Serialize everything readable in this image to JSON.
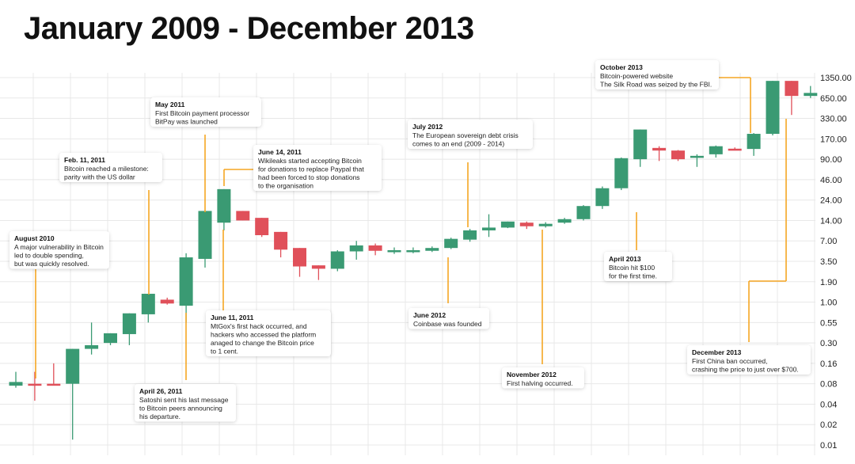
{
  "title": "January 2009 - December 2013",
  "colors": {
    "up": "#3a9a73",
    "down": "#e0505a",
    "leader": "#f5a623",
    "grid": "#e8e8e8"
  },
  "chart_data": {
    "type": "candlestick",
    "y_scale": "log",
    "y_ticks": [
      "1350.00",
      "650.00",
      "330.00",
      "170.00",
      "90.00",
      "46.00",
      "24.00",
      "14.00",
      "7.00",
      "3.50",
      "1.90",
      "1.00",
      "0.55",
      "0.30",
      "0.16",
      "0.08",
      "0.04",
      "0.02",
      "0.01"
    ],
    "candles": [
      {
        "open": 0.075,
        "close": 0.085,
        "high": 0.12,
        "low": 0.07
      },
      {
        "open": 0.08,
        "close": 0.078,
        "high": 0.12,
        "low": 0.045
      },
      {
        "open": 0.08,
        "close": 0.078,
        "high": 0.16,
        "low": 0.077
      },
      {
        "open": 0.08,
        "close": 0.25,
        "high": 0.25,
        "low": 0.012
      },
      {
        "open": 0.25,
        "close": 0.28,
        "high": 0.55,
        "low": 0.21
      },
      {
        "open": 0.3,
        "close": 0.4,
        "high": 0.4,
        "low": 0.28
      },
      {
        "open": 0.39,
        "close": 0.72,
        "high": 0.72,
        "low": 0.28
      },
      {
        "open": 0.7,
        "close": 1.3,
        "high": 1.3,
        "low": 0.55
      },
      {
        "open": 1.08,
        "close": 0.96,
        "high": 1.15,
        "low": 0.93
      },
      {
        "open": 0.9,
        "close": 4.0,
        "high": 4.6,
        "low": 0.55
      },
      {
        "open": 3.8,
        "close": 18.0,
        "high": 18.0,
        "low": 2.9
      },
      {
        "open": 13.0,
        "close": 34.0,
        "high": 34.0,
        "low": 10.0
      },
      {
        "open": 18.0,
        "close": 14.0,
        "high": 18.0,
        "low": 14.0
      },
      {
        "open": 15.0,
        "close": 8.5,
        "high": 15.0,
        "low": 8.0
      },
      {
        "open": 9.5,
        "close": 5.2,
        "high": 9.5,
        "low": 4.0
      },
      {
        "open": 5.5,
        "close": 3.0,
        "high": 5.5,
        "low": 2.2
      },
      {
        "open": 3.1,
        "close": 2.8,
        "high": 3.1,
        "low": 2.0
      },
      {
        "open": 2.8,
        "close": 4.9,
        "high": 5.1,
        "low": 2.6
      },
      {
        "open": 4.9,
        "close": 6.0,
        "high": 7.0,
        "low": 3.7
      },
      {
        "open": 6.0,
        "close": 5.0,
        "high": 6.4,
        "low": 4.3
      },
      {
        "open": 5.0,
        "close": 5.1,
        "high": 5.6,
        "low": 4.5
      },
      {
        "open": 5.0,
        "close": 5.1,
        "high": 5.6,
        "low": 4.6
      },
      {
        "open": 5.0,
        "close": 5.5,
        "high": 5.8,
        "low": 4.8
      },
      {
        "open": 5.5,
        "close": 7.5,
        "high": 7.8,
        "low": 5.3
      },
      {
        "open": 7.3,
        "close": 10.0,
        "high": 10.5,
        "low": 6.8
      },
      {
        "open": 10.0,
        "close": 11.0,
        "high": 16.5,
        "low": 8.0
      },
      {
        "open": 11.0,
        "close": 13.5,
        "high": 13.5,
        "low": 10.8
      },
      {
        "open": 13.0,
        "close": 11.5,
        "high": 13.5,
        "low": 10.5
      },
      {
        "open": 11.5,
        "close": 12.5,
        "high": 13.2,
        "low": 11.0
      },
      {
        "open": 13.0,
        "close": 14.5,
        "high": 15.0,
        "low": 12.5
      },
      {
        "open": 14.5,
        "close": 20.5,
        "high": 21.0,
        "low": 14.0
      },
      {
        "open": 20.5,
        "close": 35.0,
        "high": 37.0,
        "low": 19.0
      },
      {
        "open": 35.0,
        "close": 93.0,
        "high": 95.0,
        "low": 33.0
      },
      {
        "open": 90.0,
        "close": 230.0,
        "high": 230.0,
        "low": 70.0
      },
      {
        "open": 128.0,
        "close": 118.0,
        "high": 135.0,
        "low": 85.0
      },
      {
        "open": 118.0,
        "close": 90.0,
        "high": 120.0,
        "low": 85.0
      },
      {
        "open": 96.0,
        "close": 100.0,
        "high": 105.0,
        "low": 70.0
      },
      {
        "open": 105.0,
        "close": 135.0,
        "high": 138.0,
        "low": 95.0
      },
      {
        "open": 125.0,
        "close": 123.0,
        "high": 130.0,
        "low": 120.0
      },
      {
        "open": 124.0,
        "close": 200.0,
        "high": 205.0,
        "low": 100.0
      },
      {
        "open": 200.0,
        "close": 1200.0,
        "high": 1200.0,
        "low": 190.0
      },
      {
        "open": 1200.0,
        "close": 700.0,
        "high": 1200.0,
        "low": 370.0
      },
      {
        "open": 700.0,
        "close": 780.0,
        "high": 1000.0,
        "low": 650.0
      }
    ],
    "annotations": [
      {
        "title": "August 2010",
        "lines": [
          "A major vulnerability in Bitcoin",
          "led to double spending,",
          "but was quickly resolved."
        ]
      },
      {
        "title": "Feb. 11, 2011",
        "lines": [
          "Bitcoin reached a milestone:",
          "parity with the US dollar"
        ]
      },
      {
        "title": "May 2011",
        "lines": [
          "First Bitcoin payment processor",
          "BitPay was launched"
        ]
      },
      {
        "title": "April 26, 2011",
        "lines": [
          "Satoshi sent his last message",
          "to Bitcoin peers announcing",
          "his departure."
        ]
      },
      {
        "title": "June 14, 2011",
        "lines": [
          "Wikileaks started accepting Bitcoin",
          "for donations to replace Paypal that",
          "had been forced to stop donations",
          "to the organisation"
        ]
      },
      {
        "title": "June 11, 2011",
        "lines": [
          "MtGox's first hack occurred, and",
          "hackers who accessed the platform",
          "anaged to change the Bitcoin price",
          "to 1 cent."
        ]
      },
      {
        "title": "July 2012",
        "lines": [
          "The European sovereign debt crisis",
          "comes to an end (2009 - 2014)"
        ]
      },
      {
        "title": "June 2012",
        "lines": [
          "Coinbase was founded"
        ]
      },
      {
        "title": "November 2012",
        "lines": [
          "First halving occurred."
        ]
      },
      {
        "title": "April 2013",
        "lines": [
          "Bitcoin hit $100",
          "for the first time."
        ]
      },
      {
        "title": "October 2013",
        "lines": [
          "Bitcoin-powered website",
          "The Silk Road was seized by the FBI."
        ]
      },
      {
        "title": "December 2013",
        "lines": [
          "First China ban occurred,",
          "crashing the price to just over $700."
        ]
      }
    ]
  }
}
